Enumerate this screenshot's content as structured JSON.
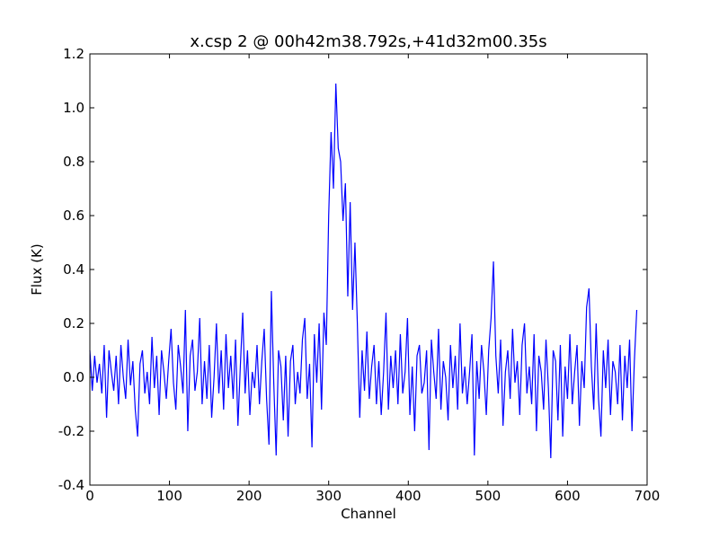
{
  "chart_data": {
    "type": "line",
    "title": "x.csp 2 @ 00h42m38.792s,+41d32m00.35s",
    "xlabel": "Channel",
    "ylabel": "Flux (K)",
    "xlim": [
      0,
      700
    ],
    "xticks": [
      0,
      100,
      200,
      300,
      400,
      500,
      600,
      700
    ],
    "ylim": [
      -0.4,
      1.2
    ],
    "yticks": [
      -0.4,
      -0.2,
      {
        "value": 0,
        "label": "0.0"
      },
      0.2,
      0.4,
      0.6,
      0.8,
      {
        "value": 1,
        "label": "1.0"
      },
      1.2
    ],
    "grid": false,
    "x": [
      0,
      3,
      6,
      9,
      12,
      15,
      18,
      21,
      24,
      27,
      30,
      33,
      36,
      39,
      42,
      45,
      48,
      51,
      54,
      57,
      60,
      63,
      66,
      69,
      72,
      75,
      78,
      81,
      84,
      87,
      90,
      93,
      96,
      99,
      102,
      105,
      108,
      111,
      114,
      117,
      120,
      123,
      126,
      129,
      132,
      135,
      138,
      141,
      144,
      147,
      150,
      153,
      156,
      159,
      162,
      165,
      168,
      171,
      174,
      177,
      180,
      183,
      186,
      189,
      192,
      195,
      198,
      201,
      204,
      207,
      210,
      213,
      216,
      219,
      222,
      225,
      228,
      231,
      234,
      237,
      240,
      243,
      246,
      249,
      252,
      255,
      258,
      261,
      264,
      267,
      270,
      273,
      276,
      279,
      282,
      285,
      288,
      291,
      294,
      297,
      300,
      303,
      306,
      309,
      312,
      315,
      318,
      321,
      324,
      327,
      330,
      333,
      336,
      339,
      342,
      345,
      348,
      351,
      354,
      357,
      360,
      363,
      366,
      369,
      372,
      375,
      378,
      381,
      384,
      387,
      390,
      393,
      396,
      399,
      402,
      405,
      408,
      411,
      414,
      417,
      420,
      423,
      426,
      429,
      432,
      435,
      438,
      441,
      444,
      447,
      450,
      453,
      456,
      459,
      462,
      465,
      468,
      471,
      474,
      477,
      480,
      483,
      486,
      489,
      492,
      495,
      498,
      501,
      504,
      507,
      510,
      513,
      516,
      519,
      522,
      525,
      528,
      531,
      534,
      537,
      540,
      543,
      546,
      549,
      552,
      555,
      558,
      561,
      564,
      567,
      570,
      573,
      576,
      579,
      582,
      585,
      588,
      591,
      594,
      597,
      600,
      603,
      606,
      609,
      612,
      615,
      618,
      621,
      624,
      627,
      630,
      633,
      636,
      639,
      642,
      645,
      648,
      651,
      654,
      657,
      660,
      663,
      666,
      669,
      672,
      675,
      678,
      681,
      684,
      687
    ],
    "series": [
      {
        "name": "Flux",
        "color": "#0000ff",
        "values": [
          0.1,
          -0.05,
          0.08,
          -0.02,
          0.05,
          -0.06,
          0.12,
          -0.15,
          0.1,
          0.02,
          -0.05,
          0.08,
          -0.1,
          0.12,
          0.0,
          -0.08,
          0.14,
          -0.03,
          0.06,
          -0.12,
          -0.22,
          0.05,
          0.1,
          -0.06,
          0.02,
          -0.1,
          0.15,
          -0.04,
          0.08,
          -0.14,
          0.1,
          0.02,
          -0.08,
          0.06,
          0.18,
          -0.02,
          -0.12,
          0.12,
          0.04,
          -0.06,
          0.25,
          -0.2,
          0.08,
          0.14,
          -0.05,
          0.02,
          0.22,
          -0.1,
          0.06,
          -0.08,
          0.12,
          -0.15,
          0.0,
          0.2,
          -0.06,
          0.1,
          -0.12,
          0.16,
          -0.04,
          0.08,
          -0.08,
          0.14,
          -0.18,
          0.04,
          0.24,
          -0.06,
          0.1,
          -0.14,
          0.02,
          -0.04,
          0.12,
          -0.1,
          0.06,
          0.18,
          -0.08,
          -0.25,
          0.32,
          -0.02,
          -0.29,
          0.1,
          0.04,
          -0.16,
          0.08,
          -0.22,
          0.06,
          0.12,
          -0.1,
          0.02,
          -0.06,
          0.14,
          0.22,
          -0.08,
          0.05,
          -0.26,
          0.16,
          -0.02,
          0.2,
          -0.12,
          0.24,
          0.12,
          0.6,
          0.91,
          0.7,
          1.09,
          0.85,
          0.8,
          0.58,
          0.72,
          0.3,
          0.65,
          0.25,
          0.5,
          0.2,
          -0.15,
          0.1,
          -0.05,
          0.17,
          -0.08,
          0.04,
          0.12,
          -0.1,
          0.06,
          -0.14,
          0.02,
          0.24,
          -0.12,
          0.08,
          -0.04,
          0.1,
          -0.1,
          0.16,
          -0.06,
          0.02,
          0.22,
          -0.14,
          0.04,
          -0.2,
          0.08,
          0.12,
          -0.06,
          -0.02,
          0.1,
          -0.27,
          0.14,
          0.02,
          -0.08,
          0.18,
          -0.12,
          0.06,
          0.0,
          -0.16,
          0.12,
          -0.04,
          0.08,
          -0.12,
          0.2,
          -0.06,
          0.04,
          -0.1,
          0.02,
          0.16,
          -0.29,
          0.06,
          -0.08,
          0.12,
          0.02,
          -0.14,
          0.1,
          0.22,
          0.43,
          0.08,
          -0.06,
          0.14,
          -0.18,
          0.02,
          0.1,
          -0.08,
          0.18,
          -0.02,
          0.06,
          -0.14,
          0.12,
          0.2,
          -0.06,
          0.04,
          -0.1,
          0.16,
          -0.2,
          0.08,
          0.02,
          -0.12,
          0.14,
          -0.04,
          -0.3,
          0.1,
          0.06,
          -0.16,
          0.12,
          -0.22,
          0.04,
          -0.08,
          0.16,
          -0.1,
          0.02,
          0.12,
          -0.18,
          0.06,
          -0.04,
          0.26,
          0.33,
          0.04,
          -0.12,
          0.2,
          -0.08,
          -0.22,
          0.1,
          -0.04,
          0.14,
          -0.14,
          0.06,
          0.02,
          -0.1,
          0.12,
          -0.16,
          0.08,
          -0.04,
          0.14,
          -0.2,
          0.06,
          0.25
        ]
      }
    ]
  }
}
